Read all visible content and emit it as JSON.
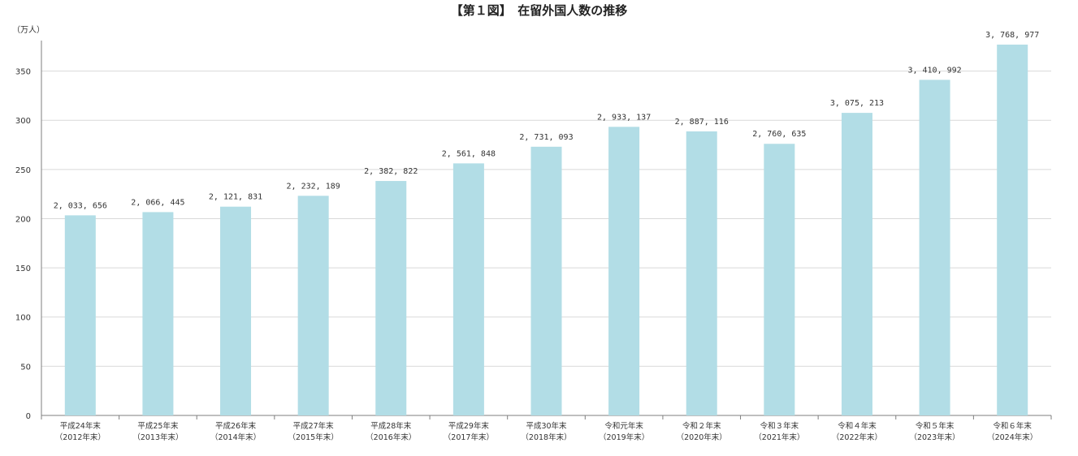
{
  "chart_data": {
    "type": "bar",
    "title": "【第１図】　在留外国人数の推移",
    "ylabel": "（万人）",
    "ylim": [
      0,
      380
    ],
    "yticks": [
      0,
      50,
      100,
      150,
      200,
      250,
      300,
      350
    ],
    "grid": true,
    "categories": [
      [
        "平成24年末",
        "（2012年末）"
      ],
      [
        "平成25年末",
        "（2013年末）"
      ],
      [
        "平成26年末",
        "（2014年末）"
      ],
      [
        "平成27年末",
        "（2015年末）"
      ],
      [
        "平成28年末",
        "（2016年末）"
      ],
      [
        "平成29年末",
        "（2017年末）"
      ],
      [
        "平成30年末",
        "（2018年末）"
      ],
      [
        "令和元年末",
        "（2019年末）"
      ],
      [
        "令和２年末",
        "（2020年末）"
      ],
      [
        "令和３年末",
        "（2021年末）"
      ],
      [
        "令和４年末",
        "（2022年末）"
      ],
      [
        "令和５年末",
        "（2023年末）"
      ],
      [
        "令和６年末",
        "（2024年末）"
      ]
    ],
    "values": [
      203.3656,
      206.6445,
      212.1831,
      223.2189,
      238.2822,
      256.1848,
      273.1093,
      293.3137,
      288.7116,
      276.0635,
      307.5213,
      341.0992,
      376.8977
    ],
    "data_labels": [
      "2, 033, 656",
      "2, 066, 445",
      "2, 121, 831",
      "2, 232, 189",
      "2, 382, 822",
      "2, 561, 848",
      "2, 731, 093",
      "2, 933, 137",
      "2, 887, 116",
      "2, 760, 635",
      "3, 075, 213",
      "3, 410, 992",
      "3, 768, 977"
    ],
    "colors": {
      "bar": "#b2dde6",
      "grid": "#d9d9d9",
      "axis": "#7f7f7f"
    }
  }
}
